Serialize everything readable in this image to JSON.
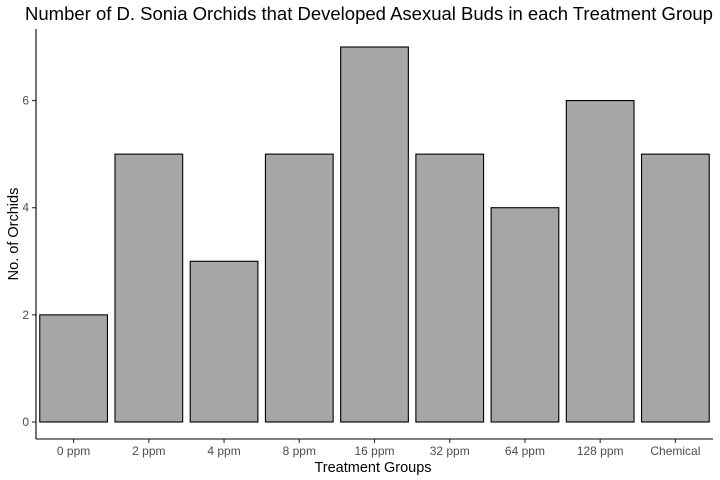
{
  "chart_data": {
    "type": "bar",
    "title": "Number of D. Sonia Orchids that Developed Asexual Buds in each Treatment Group",
    "xlabel": "Treatment Groups",
    "ylabel": "No. of Orchids",
    "categories": [
      "0 ppm",
      "2 ppm",
      "4 ppm",
      "8 ppm",
      "16 ppm",
      "32 ppm",
      "64 ppm",
      "128 ppm",
      "Chemical"
    ],
    "values": [
      2,
      5,
      3,
      5,
      7,
      5,
      4,
      6,
      5
    ],
    "ylim": [
      0,
      7
    ],
    "yticks": [
      0,
      2,
      4,
      6
    ],
    "grid": false,
    "legend": "none",
    "bar_fill": "#a6a6a6",
    "bar_stroke": "#000000",
    "axis_color": "#000000"
  }
}
